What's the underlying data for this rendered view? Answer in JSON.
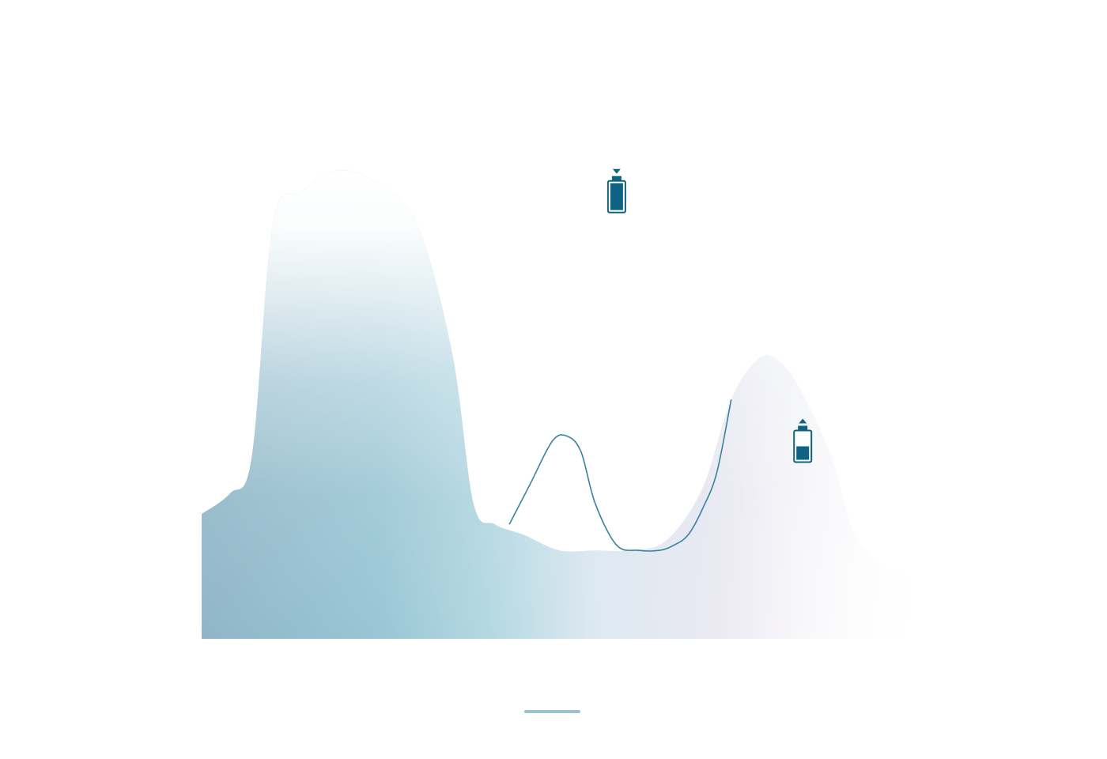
{
  "chart_data": {
    "type": "area",
    "x_ticks": [
      "",
      "",
      "",
      "",
      ""
    ],
    "xlim": [
      0,
      100
    ],
    "ylim": [
      0,
      100
    ],
    "grid": false,
    "legend_position": "bottom",
    "series": [
      {
        "kind": "area",
        "name": "",
        "x": [
          0,
          4,
          7,
          10,
          14,
          19,
          24,
          30,
          35,
          38,
          41,
          45,
          50,
          55,
          60,
          65,
          70,
          74,
          78,
          81,
          84,
          88,
          91,
          95,
          100
        ],
        "y": [
          24,
          28,
          35,
          80,
          86,
          90,
          88,
          80,
          55,
          26,
          22,
          20,
          17,
          17,
          17,
          19,
          29,
          46,
          54,
          53,
          47,
          35,
          21,
          14,
          12
        ]
      },
      {
        "kind": "line",
        "name": "",
        "x": [
          43,
          46,
          49,
          51,
          53,
          55,
          58,
          61,
          64,
          66,
          68,
          70,
          72,
          74
        ],
        "y": [
          22,
          30,
          38,
          39,
          36,
          26,
          18,
          17,
          17,
          18,
          20,
          25,
          32,
          46
        ]
      }
    ],
    "annotations": [
      {
        "icon": "battery-full-discharge-icon",
        "x": 58,
        "y": 85
      },
      {
        "icon": "battery-low-charge-icon",
        "x": 84,
        "y": 37
      }
    ],
    "colors": {
      "area_left": "#8fb6c6",
      "area_mid": "#a6cfdc",
      "area_right": "#f2eff6",
      "line": "#3a82a0",
      "icon": "#0e6283",
      "legend_line": "#9cc2d2"
    },
    "legend": [
      {
        "label": ""
      },
      {
        "label": ""
      }
    ]
  }
}
